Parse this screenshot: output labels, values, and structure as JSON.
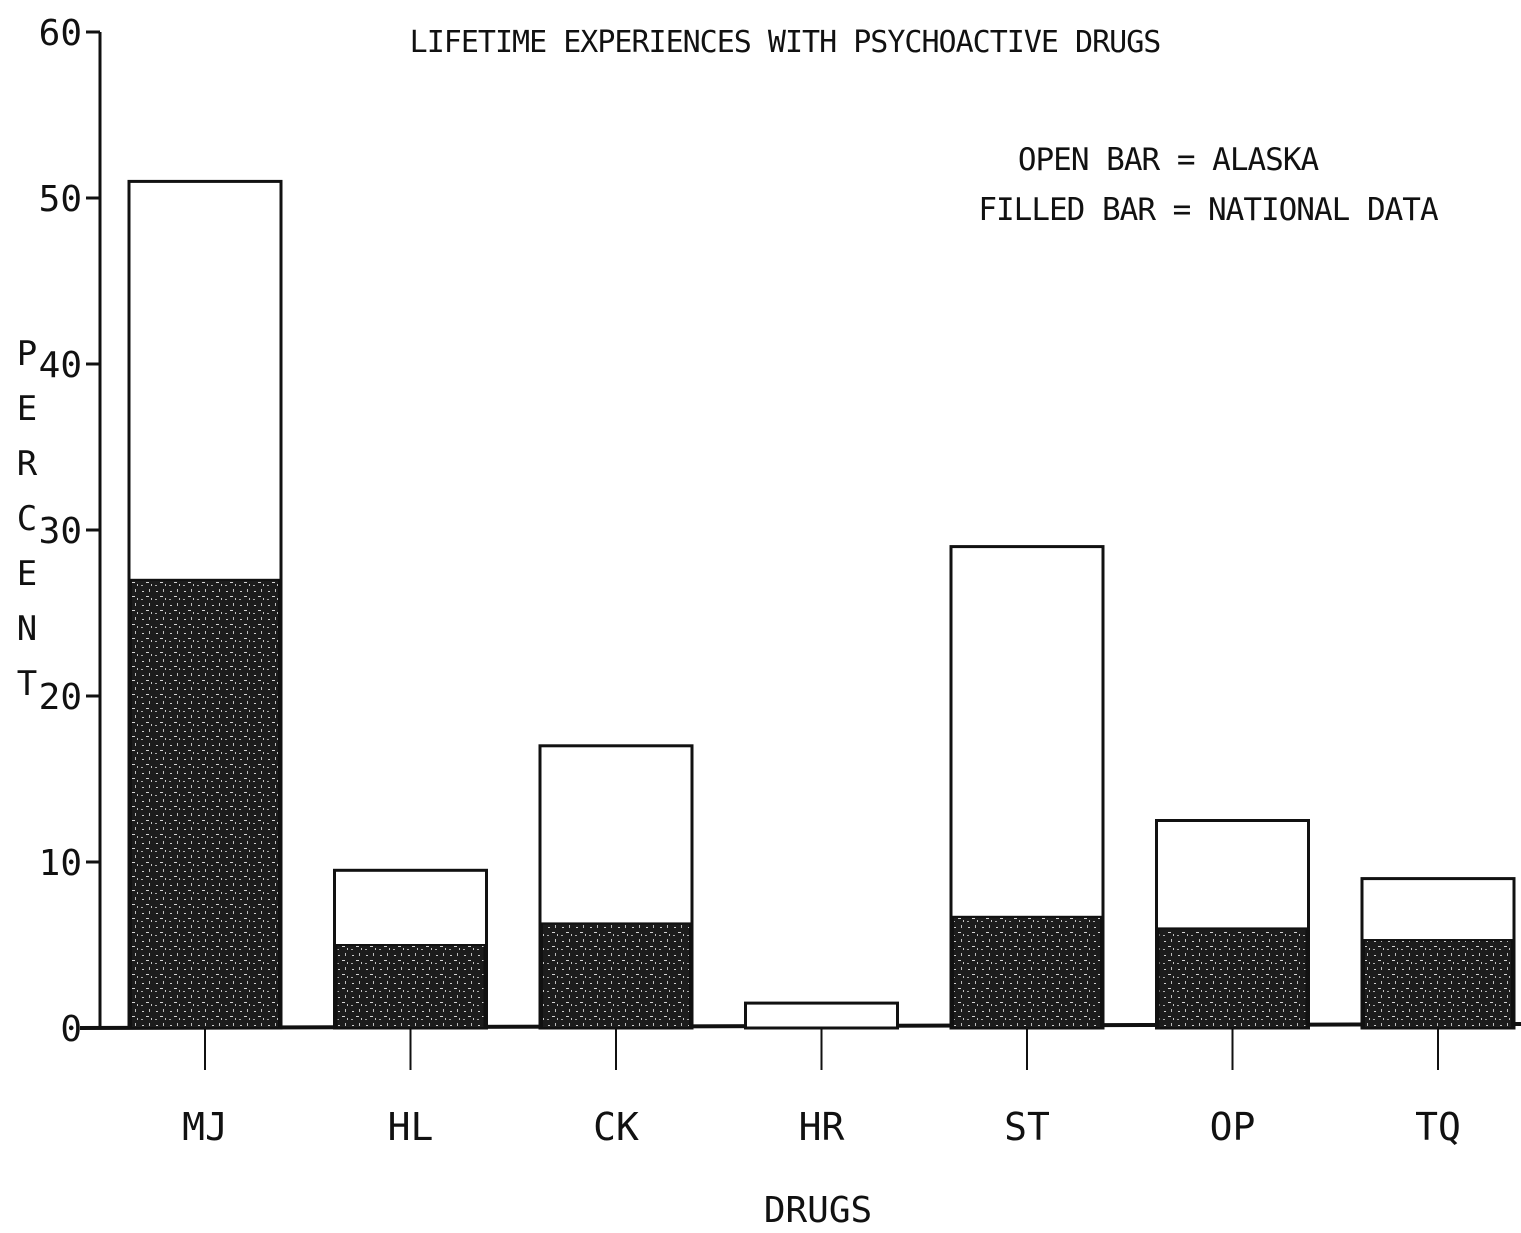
{
  "chart_data": {
    "type": "bar",
    "title": "LIFETIME EXPERIENCES WITH PSYCHOACTIVE DRUGS",
    "legend": {
      "open": "OPEN BAR = ALASKA",
      "filled": "FILLED BAR = NATIONAL DATA",
      "placement": "top-right"
    },
    "xlabel": "DRUGS",
    "ylabel": "PERCENT",
    "ylim": [
      0,
      60
    ],
    "yticks": [
      "0",
      "10",
      "20",
      "30",
      "40",
      "50",
      "60"
    ],
    "categories": [
      "MJ",
      "HL",
      "CK",
      "HR",
      "ST",
      "OP",
      "TQ"
    ],
    "series": [
      {
        "name": "ALASKA",
        "style": "open",
        "values": [
          51,
          9.5,
          17,
          1.5,
          29,
          12.5,
          9
        ]
      },
      {
        "name": "NATIONAL DATA",
        "style": "filled",
        "values": [
          27,
          5,
          6.3,
          0,
          6.7,
          6,
          5.3
        ]
      }
    ],
    "grid": false,
    "colors": {
      "ink": "#111111",
      "fill": "#1c1c1c",
      "open": "#ffffff"
    }
  }
}
